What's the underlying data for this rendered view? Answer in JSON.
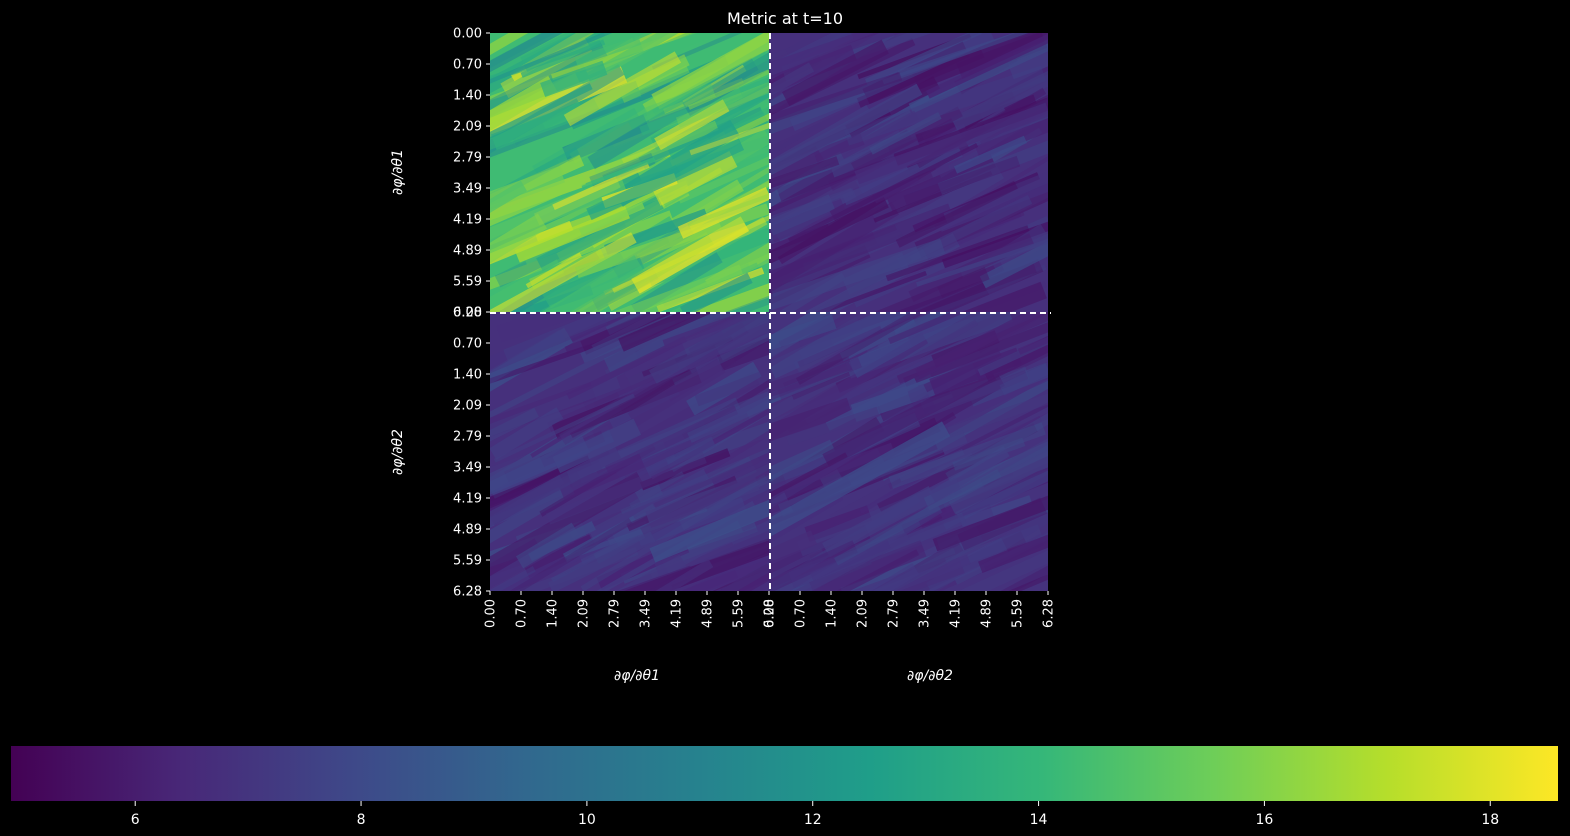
{
  "chart_data": {
    "type": "heatmap",
    "title": "Metric at t=10",
    "grid": false,
    "legend": "colorbar-bottom",
    "block_rows": [
      "∂φ/∂θ1",
      "∂φ/∂θ2"
    ],
    "block_cols": [
      "∂φ/∂θ1",
      "∂φ/∂θ2"
    ],
    "tick_labels": [
      "0.00",
      "0.70",
      "1.40",
      "2.09",
      "2.79",
      "3.49",
      "4.19",
      "4.89",
      "5.59",
      "6.28"
    ],
    "axis_range": [
      0,
      6.28
    ],
    "blocks": [
      {
        "row": 0,
        "col": 0,
        "mean": 14.3,
        "range": [
          11.5,
          18.5
        ]
      },
      {
        "row": 0,
        "col": 1,
        "mean": 6.8,
        "range": [
          5.2,
          8.2
        ]
      },
      {
        "row": 1,
        "col": 0,
        "mean": 6.8,
        "range": [
          5.2,
          8.2
        ]
      },
      {
        "row": 1,
        "col": 1,
        "mean": 6.9,
        "range": [
          5.5,
          8.3
        ]
      }
    ],
    "separators": "white-dashed",
    "colormap": "viridis",
    "colorbar": {
      "range": [
        4.9,
        18.6
      ],
      "ticks": [
        6,
        8,
        10,
        12,
        14,
        16,
        18
      ],
      "tick_labels": [
        "6",
        "8",
        "10",
        "12",
        "14",
        "16",
        "18"
      ]
    },
    "colors": {
      "background": "#000000",
      "text": "#ffffff",
      "viridis": [
        "#440154",
        "#482878",
        "#3e4989",
        "#31688e",
        "#26828e",
        "#1f9e89",
        "#35b779",
        "#6ece58",
        "#b5de2b",
        "#fde725"
      ]
    }
  }
}
